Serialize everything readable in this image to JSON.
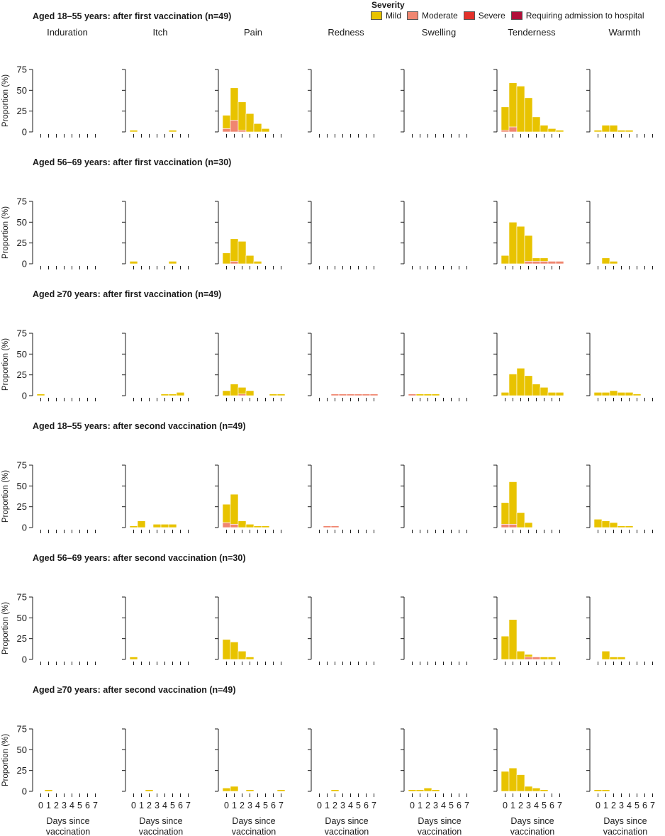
{
  "legend": {
    "title": "Severity",
    "items": [
      {
        "label": "Mild",
        "color": "#e8c300"
      },
      {
        "label": "Moderate",
        "color": "#f08670"
      },
      {
        "label": "Severe",
        "color": "#e3312a"
      },
      {
        "label": "Requiring admission to hospital",
        "color": "#b0103a"
      }
    ]
  },
  "columns": [
    "Induration",
    "Itch",
    "Pain",
    "Redness",
    "Swelling",
    "Tenderness",
    "Warmth"
  ],
  "ylabel": "Proportion (%)",
  "xlabel_line1": "Days since",
  "xlabel_line2": "vaccination",
  "chart_data": {
    "type": "bar",
    "stacked": true,
    "x": [
      0,
      1,
      2,
      3,
      4,
      5,
      6,
      7
    ],
    "ylim": [
      0,
      75
    ],
    "yticks": [
      0,
      25,
      50,
      75
    ],
    "series_names": [
      "Mild",
      "Moderate",
      "Severe",
      "Requiring admission to hospital"
    ],
    "rows": [
      {
        "title": "Aged 18–55 years: after first vaccination (n=49)",
        "panels": {
          "Induration": {
            "mild": [
              0,
              0,
              0,
              0,
              0,
              0,
              0,
              0
            ],
            "moderate": [
              0,
              0,
              0,
              0,
              0,
              0,
              0,
              0
            ]
          },
          "Itch": {
            "mild": [
              2,
              0,
              0,
              0,
              0,
              2,
              0,
              0
            ],
            "moderate": [
              0,
              0,
              0,
              0,
              0,
              0,
              0,
              0
            ]
          },
          "Pain": {
            "mild": [
              16,
              39,
              34,
              22,
              10,
              4,
              0,
              0
            ],
            "moderate": [
              4,
              14,
              2,
              0,
              0,
              0,
              0,
              0
            ]
          },
          "Redness": {
            "mild": [
              0,
              0,
              0,
              0,
              0,
              0,
              0,
              0
            ],
            "moderate": [
              0,
              0,
              0,
              0,
              0,
              0,
              0,
              0
            ]
          },
          "Swelling": {
            "mild": [
              0,
              0,
              0,
              0,
              0,
              0,
              0,
              0
            ],
            "moderate": [
              0,
              0,
              0,
              0,
              0,
              0,
              0,
              0
            ]
          },
          "Tenderness": {
            "mild": [
              28,
              53,
              55,
              41,
              18,
              8,
              4,
              2
            ],
            "moderate": [
              2,
              6,
              0,
              0,
              0,
              0,
              0,
              0
            ]
          },
          "Warmth": {
            "mild": [
              2,
              8,
              8,
              2,
              2,
              0,
              0,
              0
            ],
            "moderate": [
              0,
              0,
              0,
              0,
              0,
              0,
              0,
              0
            ]
          }
        }
      },
      {
        "title": "Aged 56–69 years: after first vaccination (n=30)",
        "panels": {
          "Induration": {
            "mild": [
              0,
              0,
              0,
              0,
              0,
              0,
              0,
              0
            ],
            "moderate": [
              0,
              0,
              0,
              0,
              0,
              0,
              0,
              0
            ]
          },
          "Itch": {
            "mild": [
              3,
              0,
              0,
              0,
              0,
              3,
              0,
              0
            ],
            "moderate": [
              0,
              0,
              0,
              0,
              0,
              0,
              0,
              0
            ]
          },
          "Pain": {
            "mild": [
              13,
              27,
              27,
              10,
              3,
              0,
              0,
              0
            ],
            "moderate": [
              0,
              3,
              0,
              0,
              0,
              0,
              0,
              0
            ]
          },
          "Redness": {
            "mild": [
              0,
              0,
              0,
              0,
              0,
              0,
              0,
              0
            ],
            "moderate": [
              0,
              0,
              0,
              0,
              0,
              0,
              0,
              0
            ]
          },
          "Swelling": {
            "mild": [
              0,
              0,
              0,
              0,
              0,
              0,
              0,
              0
            ],
            "moderate": [
              0,
              0,
              0,
              0,
              0,
              0,
              0,
              0
            ]
          },
          "Tenderness": {
            "mild": [
              10,
              50,
              45,
              31,
              4,
              4,
              0,
              0
            ],
            "moderate": [
              0,
              0,
              0,
              3,
              3,
              3,
              3,
              3
            ]
          },
          "Warmth": {
            "mild": [
              0,
              7,
              3,
              0,
              0,
              0,
              0,
              0
            ],
            "moderate": [
              0,
              0,
              0,
              0,
              0,
              0,
              0,
              0
            ]
          }
        }
      },
      {
        "title": "Aged ≥70 years: after first  vaccination (n=49)",
        "panels": {
          "Induration": {
            "mild": [
              2,
              0,
              0,
              0,
              0,
              0,
              0,
              0
            ],
            "moderate": [
              0,
              0,
              0,
              0,
              0,
              0,
              0,
              0
            ]
          },
          "Itch": {
            "mild": [
              0,
              0,
              0,
              0,
              2,
              2,
              4,
              0
            ],
            "moderate": [
              0,
              0,
              0,
              0,
              0,
              0,
              0,
              0
            ]
          },
          "Pain": {
            "mild": [
              6,
              14,
              8,
              6,
              0,
              0,
              2,
              2
            ],
            "moderate": [
              0,
              0,
              2,
              0,
              0,
              0,
              0,
              0
            ]
          },
          "Redness": {
            "mild": [
              0,
              0,
              0,
              0,
              0,
              0,
              0,
              0
            ],
            "moderate": [
              0,
              0,
              2,
              2,
              2,
              2,
              2,
              2
            ]
          },
          "Swelling": {
            "mild": [
              0,
              2,
              2,
              2,
              0,
              0,
              0,
              0
            ],
            "moderate": [
              2,
              0,
              0,
              0,
              0,
              0,
              0,
              0
            ]
          },
          "Tenderness": {
            "mild": [
              4,
              26,
              33,
              24,
              14,
              10,
              4,
              4
            ],
            "moderate": [
              0,
              0,
              0,
              0,
              0,
              0,
              0,
              0
            ]
          },
          "Warmth": {
            "mild": [
              4,
              4,
              6,
              4,
              4,
              2,
              0,
              0
            ],
            "moderate": [
              0,
              0,
              0,
              0,
              0,
              0,
              0,
              0
            ]
          }
        }
      },
      {
        "title": "Aged 18–55 years: after second vaccination (n=49)",
        "panels": {
          "Induration": {
            "mild": [
              0,
              0,
              0,
              0,
              0,
              0,
              0,
              0
            ],
            "moderate": [
              0,
              0,
              0,
              0,
              0,
              0,
              0,
              0
            ]
          },
          "Itch": {
            "mild": [
              2,
              8,
              0,
              4,
              4,
              4,
              0,
              0
            ],
            "moderate": [
              0,
              0,
              0,
              0,
              0,
              0,
              0,
              0
            ]
          },
          "Pain": {
            "mild": [
              22,
              36,
              8,
              4,
              2,
              2,
              0,
              0
            ],
            "moderate": [
              6,
              4,
              0,
              0,
              0,
              0,
              0,
              0
            ]
          },
          "Redness": {
            "mild": [
              0,
              0,
              0,
              0,
              0,
              0,
              0,
              0
            ],
            "moderate": [
              0,
              2,
              2,
              0,
              0,
              0,
              0,
              0
            ]
          },
          "Swelling": {
            "mild": [
              0,
              0,
              0,
              0,
              0,
              0,
              0,
              0
            ],
            "moderate": [
              0,
              0,
              0,
              0,
              0,
              0,
              0,
              0
            ]
          },
          "Tenderness": {
            "mild": [
              26,
              51,
              18,
              6,
              0,
              0,
              0,
              0
            ],
            "moderate": [
              4,
              4,
              0,
              0,
              0,
              0,
              0,
              0
            ]
          },
          "Warmth": {
            "mild": [
              10,
              8,
              6,
              2,
              2,
              0,
              0,
              0
            ],
            "moderate": [
              0,
              0,
              0,
              0,
              0,
              0,
              0,
              0
            ]
          }
        }
      },
      {
        "title": "Aged 56–69 years: after second vaccination (n=30)",
        "panels": {
          "Induration": {
            "mild": [
              0,
              0,
              0,
              0,
              0,
              0,
              0,
              0
            ],
            "moderate": [
              0,
              0,
              0,
              0,
              0,
              0,
              0,
              0
            ]
          },
          "Itch": {
            "mild": [
              3,
              0,
              0,
              0,
              0,
              0,
              0,
              0
            ],
            "moderate": [
              0,
              0,
              0,
              0,
              0,
              0,
              0,
              0
            ]
          },
          "Pain": {
            "mild": [
              24,
              21,
              10,
              3,
              0,
              0,
              0,
              0
            ],
            "moderate": [
              0,
              0,
              0,
              0,
              0,
              0,
              0,
              0
            ]
          },
          "Redness": {
            "mild": [
              0,
              0,
              0,
              0,
              0,
              0,
              0,
              0
            ],
            "moderate": [
              0,
              0,
              0,
              0,
              0,
              0,
              0,
              0
            ]
          },
          "Swelling": {
            "mild": [
              0,
              0,
              0,
              0,
              0,
              0,
              0,
              0
            ],
            "moderate": [
              0,
              0,
              0,
              0,
              0,
              0,
              0,
              0
            ]
          },
          "Tenderness": {
            "mild": [
              28,
              48,
              10,
              3,
              0,
              3,
              3,
              0
            ],
            "moderate": [
              0,
              0,
              0,
              3,
              3,
              0,
              0,
              0
            ]
          },
          "Warmth": {
            "mild": [
              0,
              10,
              3,
              3,
              0,
              0,
              0,
              0
            ],
            "moderate": [
              0,
              0,
              0,
              0,
              0,
              0,
              0,
              0
            ]
          }
        }
      },
      {
        "title": "Aged ≥70 years: after second vaccination (n=49)",
        "panels": {
          "Induration": {
            "mild": [
              0,
              2,
              0,
              0,
              0,
              0,
              0,
              0
            ],
            "moderate": [
              0,
              0,
              0,
              0,
              0,
              0,
              0,
              0
            ]
          },
          "Itch": {
            "mild": [
              0,
              0,
              2,
              0,
              0,
              0,
              0,
              0
            ],
            "moderate": [
              0,
              0,
              0,
              0,
              0,
              0,
              0,
              0
            ]
          },
          "Pain": {
            "mild": [
              4,
              6,
              0,
              2,
              0,
              0,
              0,
              2
            ],
            "moderate": [
              0,
              0,
              0,
              0,
              0,
              0,
              0,
              0
            ]
          },
          "Redness": {
            "mild": [
              0,
              0,
              2,
              0,
              0,
              0,
              0,
              0
            ],
            "moderate": [
              0,
              0,
              0,
              0,
              0,
              0,
              0,
              0
            ]
          },
          "Swelling": {
            "mild": [
              2,
              2,
              4,
              2,
              0,
              0,
              0,
              0
            ],
            "moderate": [
              0,
              0,
              0,
              0,
              0,
              0,
              0,
              0
            ]
          },
          "Tenderness": {
            "mild": [
              24,
              28,
              20,
              6,
              4,
              2,
              0,
              0
            ],
            "moderate": [
              0,
              0,
              0,
              0,
              0,
              0,
              0,
              0
            ]
          },
          "Warmth": {
            "mild": [
              2,
              2,
              0,
              0,
              0,
              0,
              0,
              0
            ],
            "moderate": [
              0,
              0,
              0,
              0,
              0,
              0,
              0,
              0
            ]
          }
        }
      }
    ]
  }
}
